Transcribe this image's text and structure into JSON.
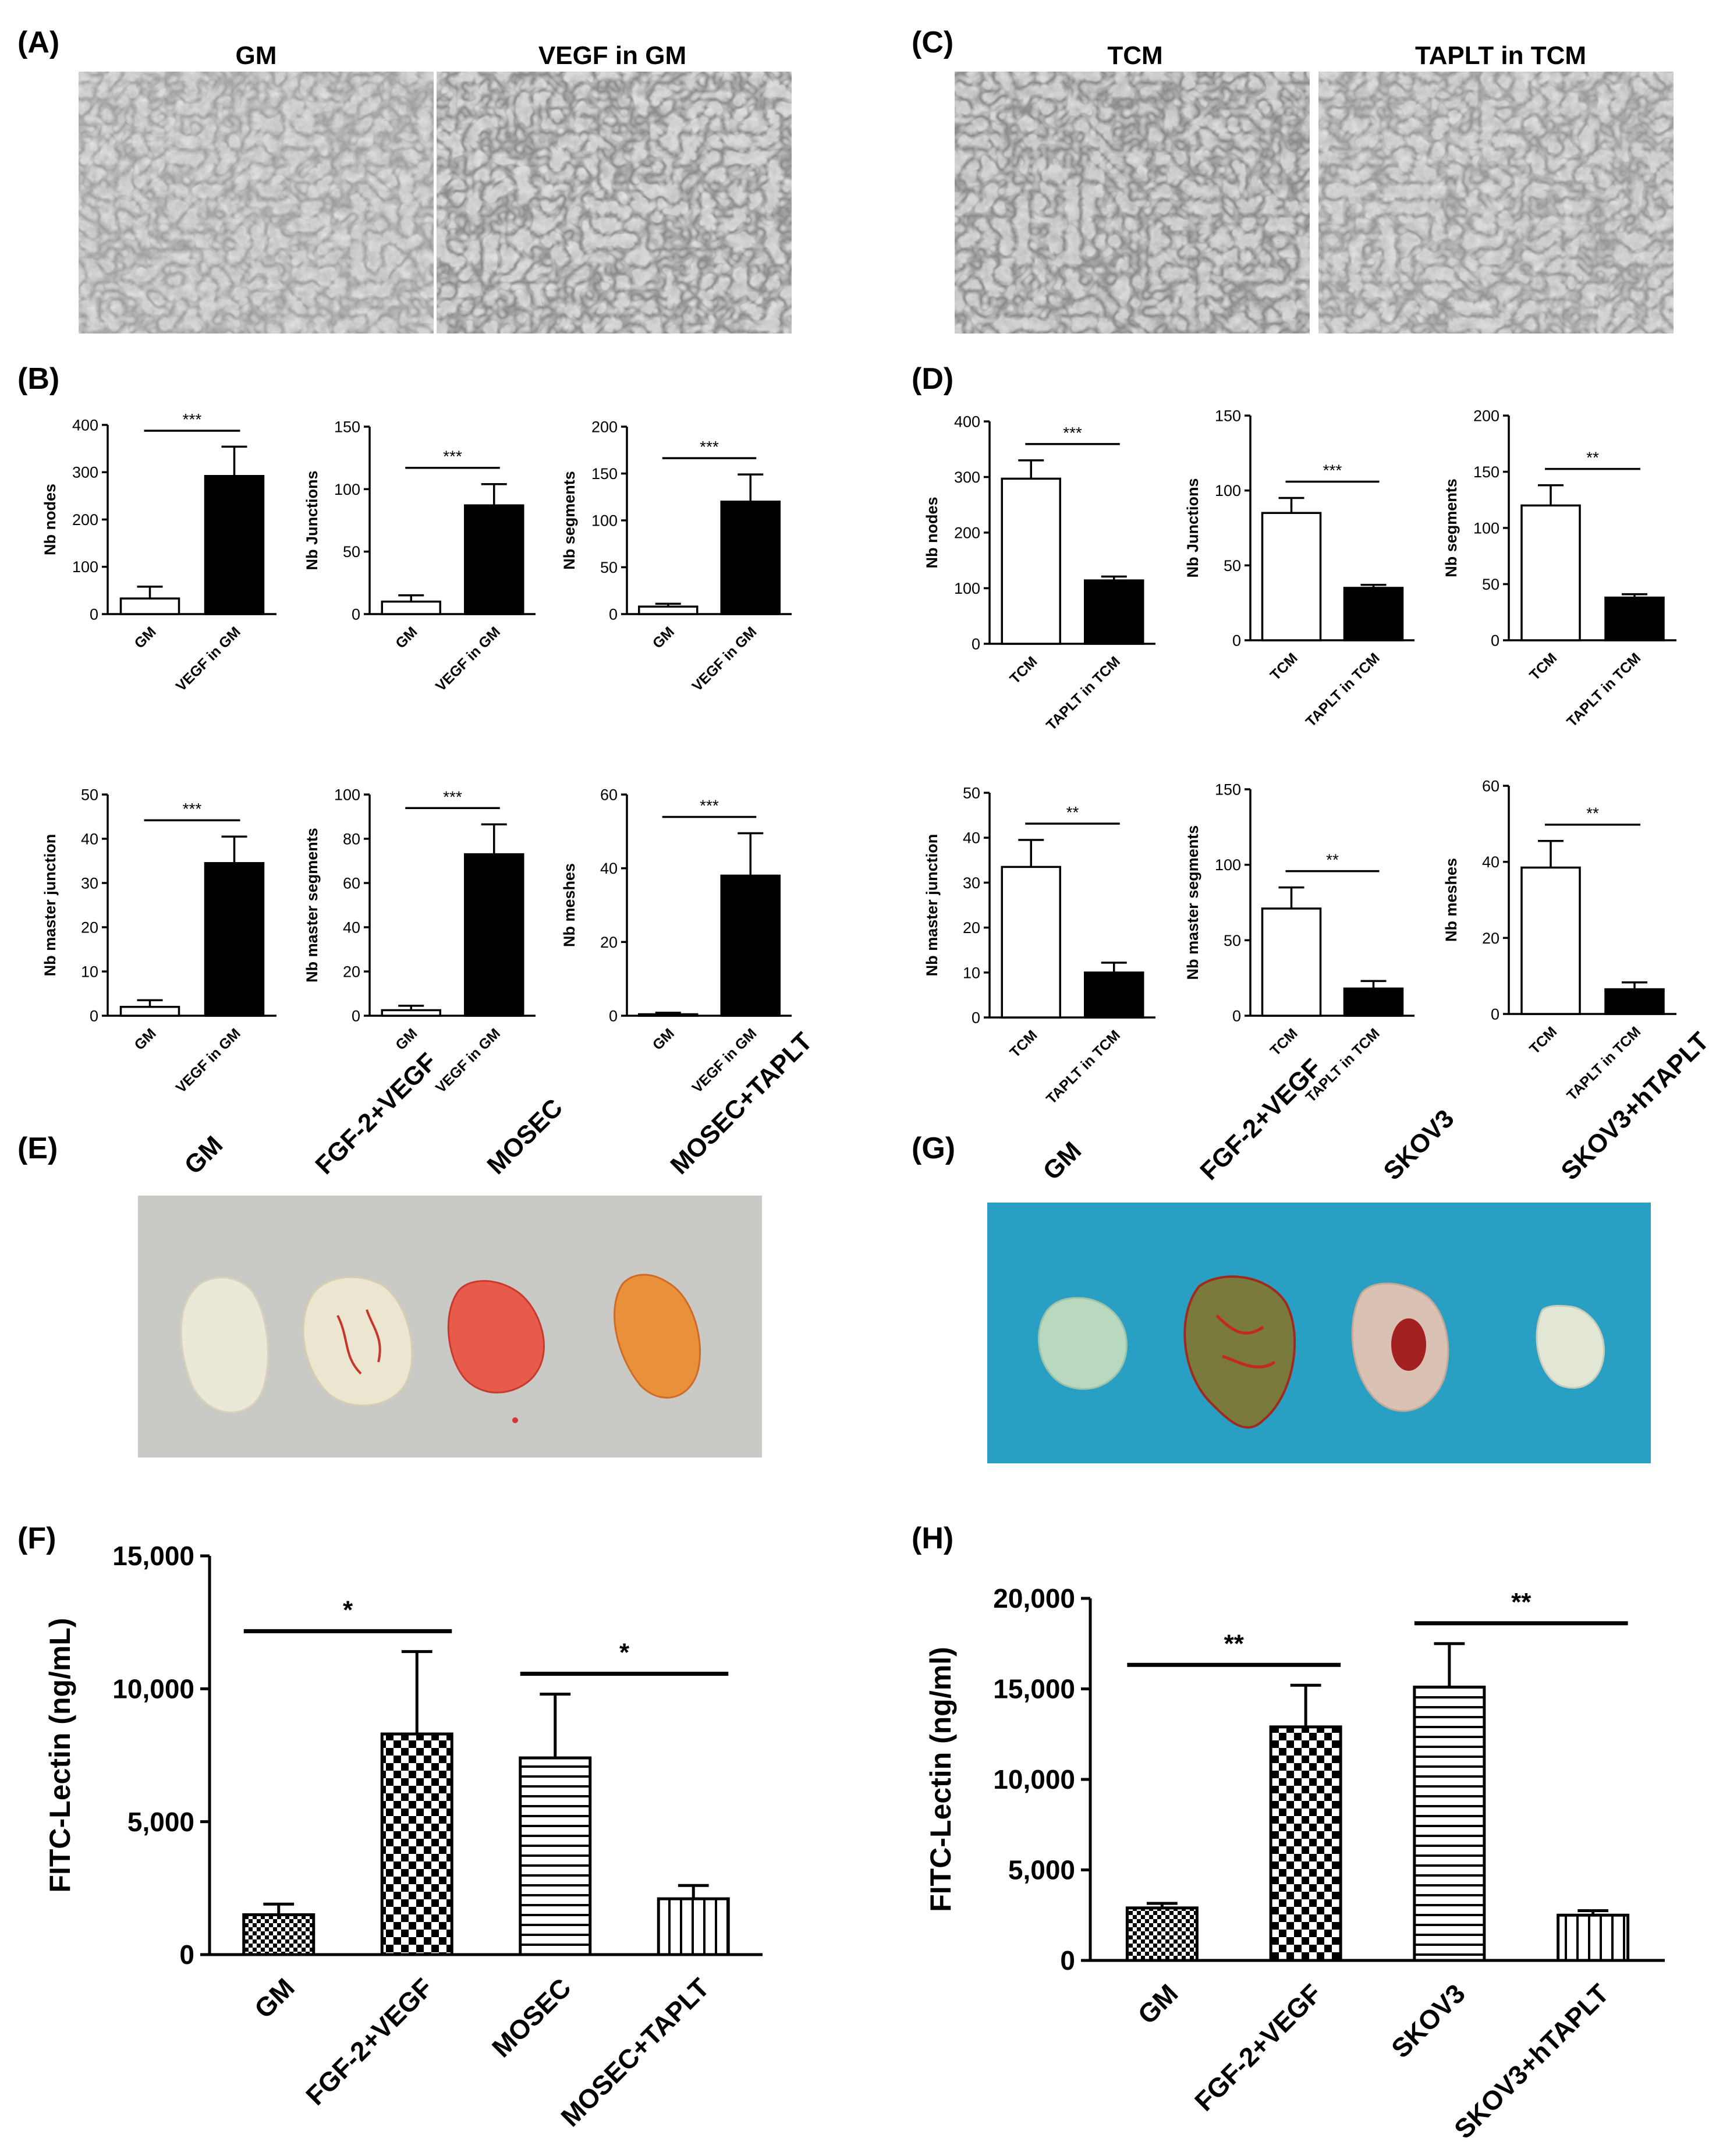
{
  "panel_labels": [
    "(A)",
    "(B)",
    "(C)",
    "(D)",
    "(E)",
    "(F)",
    "(G)",
    "(H)"
  ],
  "micro_titles": [
    "GM",
    "VEGF in GM",
    "TCM",
    "TAPLT in TCM"
  ],
  "plug_labels_E": [
    "GM",
    "FGF-2+VEGF",
    "MOSEC",
    "MOSEC+TAPLT"
  ],
  "plug_labels_G": [
    "GM",
    "FGF-2+VEGF",
    "SKOV3",
    "SKOV3+hTAPLT"
  ],
  "colors": {
    "bar_black": "#000000",
    "bar_white": "#ffffff",
    "micro_bg": "#b9b9b9",
    "plug_bg_E": "#c9cac6",
    "plug_bg_G": "#2a9fc4"
  },
  "chart_data": [
    {
      "id": "B1",
      "type": "bar",
      "title": "",
      "xlabel": "",
      "ylabel": "Nb nodes",
      "ylim": [
        0,
        400
      ],
      "yticks": [
        "0",
        "100",
        "200",
        "300",
        "400"
      ],
      "categories": [
        "GM",
        "VEGF in GM"
      ],
      "values": [
        33,
        292
      ],
      "errors": [
        25,
        62
      ],
      "fills": [
        "white",
        "black"
      ],
      "significance": "***"
    },
    {
      "id": "B2",
      "type": "bar",
      "title": "",
      "xlabel": "",
      "ylabel": "Nb Junctions",
      "ylim": [
        0,
        150
      ],
      "yticks": [
        "0",
        "50",
        "100",
        "150"
      ],
      "categories": [
        "GM",
        "VEGF in GM"
      ],
      "values": [
        10,
        87
      ],
      "errors": [
        5,
        17
      ],
      "fills": [
        "white",
        "black"
      ],
      "significance": "***"
    },
    {
      "id": "B3",
      "type": "bar",
      "title": "",
      "xlabel": "",
      "ylabel": "Nb segments",
      "ylim": [
        0,
        200
      ],
      "yticks": [
        "0",
        "50",
        "100",
        "150",
        "200"
      ],
      "categories": [
        "GM",
        "VEGF in GM"
      ],
      "values": [
        8,
        120
      ],
      "errors": [
        3,
        29
      ],
      "fills": [
        "white",
        "black"
      ],
      "significance": "***"
    },
    {
      "id": "B4",
      "type": "bar",
      "title": "",
      "xlabel": "",
      "ylabel": "Nb master junction",
      "ylim": [
        0,
        50
      ],
      "yticks": [
        "0",
        "10",
        "20",
        "30",
        "40",
        "50"
      ],
      "categories": [
        "GM",
        "VEGF in GM"
      ],
      "values": [
        2,
        34.5
      ],
      "errors": [
        1.5,
        6
      ],
      "fills": [
        "white",
        "black"
      ],
      "significance": "***"
    },
    {
      "id": "B5",
      "type": "bar",
      "title": "",
      "xlabel": "",
      "ylabel": "Nb master segments",
      "ylim": [
        0,
        100
      ],
      "yticks": [
        "0",
        "20",
        "40",
        "60",
        "80",
        "100"
      ],
      "categories": [
        "GM",
        "VEGF in GM"
      ],
      "values": [
        2.5,
        73
      ],
      "errors": [
        2,
        13.5
      ],
      "fills": [
        "white",
        "black"
      ],
      "significance": "***"
    },
    {
      "id": "B6",
      "type": "bar",
      "title": "",
      "xlabel": "",
      "ylabel": "Nb meshes",
      "ylim": [
        0,
        60
      ],
      "yticks": [
        "0",
        "20",
        "40",
        "60"
      ],
      "categories": [
        "GM",
        "VEGF in GM"
      ],
      "values": [
        0.4,
        38
      ],
      "errors": [
        0.4,
        11.5
      ],
      "fills": [
        "white",
        "black"
      ],
      "significance": "***"
    },
    {
      "id": "D1",
      "type": "bar",
      "title": "",
      "xlabel": "",
      "ylabel": "Nb nodes",
      "ylim": [
        0,
        400
      ],
      "yticks": [
        "0",
        "100",
        "200",
        "300",
        "400"
      ],
      "categories": [
        "TCM",
        "TAPLT in TCM"
      ],
      "values": [
        297,
        114
      ],
      "errors": [
        33,
        7
      ],
      "fills": [
        "white",
        "black"
      ],
      "significance": "***"
    },
    {
      "id": "D2",
      "type": "bar",
      "title": "",
      "xlabel": "",
      "ylabel": "Nb Junctions",
      "ylim": [
        0,
        150
      ],
      "yticks": [
        "0",
        "50",
        "100",
        "150"
      ],
      "categories": [
        "TCM",
        "TAPLT in TCM"
      ],
      "values": [
        85,
        35
      ],
      "errors": [
        10,
        2
      ],
      "fills": [
        "white",
        "black"
      ],
      "significance": "***"
    },
    {
      "id": "D3",
      "type": "bar",
      "title": "",
      "xlabel": "",
      "ylabel": "Nb segments",
      "ylim": [
        0,
        200
      ],
      "yticks": [
        "0",
        "50",
        "100",
        "150",
        "200"
      ],
      "categories": [
        "TCM",
        "TAPLT in TCM"
      ],
      "values": [
        120,
        38
      ],
      "errors": [
        18,
        3
      ],
      "fills": [
        "white",
        "black"
      ],
      "significance": "**"
    },
    {
      "id": "D4",
      "type": "bar",
      "title": "",
      "xlabel": "",
      "ylabel": "Nb master junction",
      "ylim": [
        0,
        50
      ],
      "yticks": [
        "0",
        "10",
        "20",
        "30",
        "40",
        "50"
      ],
      "categories": [
        "TCM",
        "TAPLT in TCM"
      ],
      "values": [
        33.5,
        10
      ],
      "errors": [
        6,
        2.2
      ],
      "fills": [
        "white",
        "black"
      ],
      "significance": "**"
    },
    {
      "id": "D5",
      "type": "bar",
      "title": "",
      "xlabel": "",
      "ylabel": "Nb master segments",
      "ylim": [
        0,
        150
      ],
      "yticks": [
        "0",
        "50",
        "100",
        "150"
      ],
      "categories": [
        "TCM",
        "TAPLT in TCM"
      ],
      "values": [
        71,
        18
      ],
      "errors": [
        14,
        5
      ],
      "fills": [
        "white",
        "black"
      ],
      "significance": "**"
    },
    {
      "id": "D6",
      "type": "bar",
      "title": "",
      "xlabel": "",
      "ylabel": "Nb meshes",
      "ylim": [
        0,
        60
      ],
      "yticks": [
        "0",
        "20",
        "40",
        "60"
      ],
      "categories": [
        "TCM",
        "TAPLT in TCM"
      ],
      "values": [
        38.5,
        6.5
      ],
      "errors": [
        7,
        1.8
      ],
      "fills": [
        "white",
        "black"
      ],
      "significance": "**"
    },
    {
      "id": "F",
      "type": "bar",
      "title": "",
      "xlabel": "",
      "ylabel": "FITC-Lectin (ng/mL)",
      "ylim": [
        0,
        15000
      ],
      "yticks": [
        "0",
        "5,000",
        "10,000",
        "15,000"
      ],
      "categories": [
        "GM",
        "FGF-2+VEGF",
        "MOSEC",
        "MOSEC+TAPLT"
      ],
      "values": [
        1500,
        8300,
        7400,
        2100
      ],
      "errors": [
        400,
        3100,
        2400,
        500
      ],
      "fills": [
        "dense-check",
        "check",
        "hlines",
        "vlines"
      ],
      "significance_marks": [
        {
          "from": 0,
          "to": 1,
          "label": "*"
        },
        {
          "from": 2,
          "to": 3,
          "label": "*"
        }
      ]
    },
    {
      "id": "H",
      "type": "bar",
      "title": "",
      "xlabel": "",
      "ylabel": "FITC-Lectin (ng/ml)",
      "ylim": [
        0,
        20000
      ],
      "yticks": [
        "0",
        "5,000",
        "10,000",
        "15,000",
        "20,000"
      ],
      "categories": [
        "GM",
        "FGF-2+VEGF",
        "SKOV3",
        "SKOV3+hTAPLT"
      ],
      "values": [
        2900,
        12900,
        15100,
        2500
      ],
      "errors": [
        250,
        2300,
        2400,
        250
      ],
      "fills": [
        "dense-check",
        "check",
        "hlines",
        "vlines"
      ],
      "significance_marks": [
        {
          "from": 0,
          "to": 1,
          "label": "**"
        },
        {
          "from": 2,
          "to": 3,
          "label": "**"
        }
      ]
    }
  ]
}
